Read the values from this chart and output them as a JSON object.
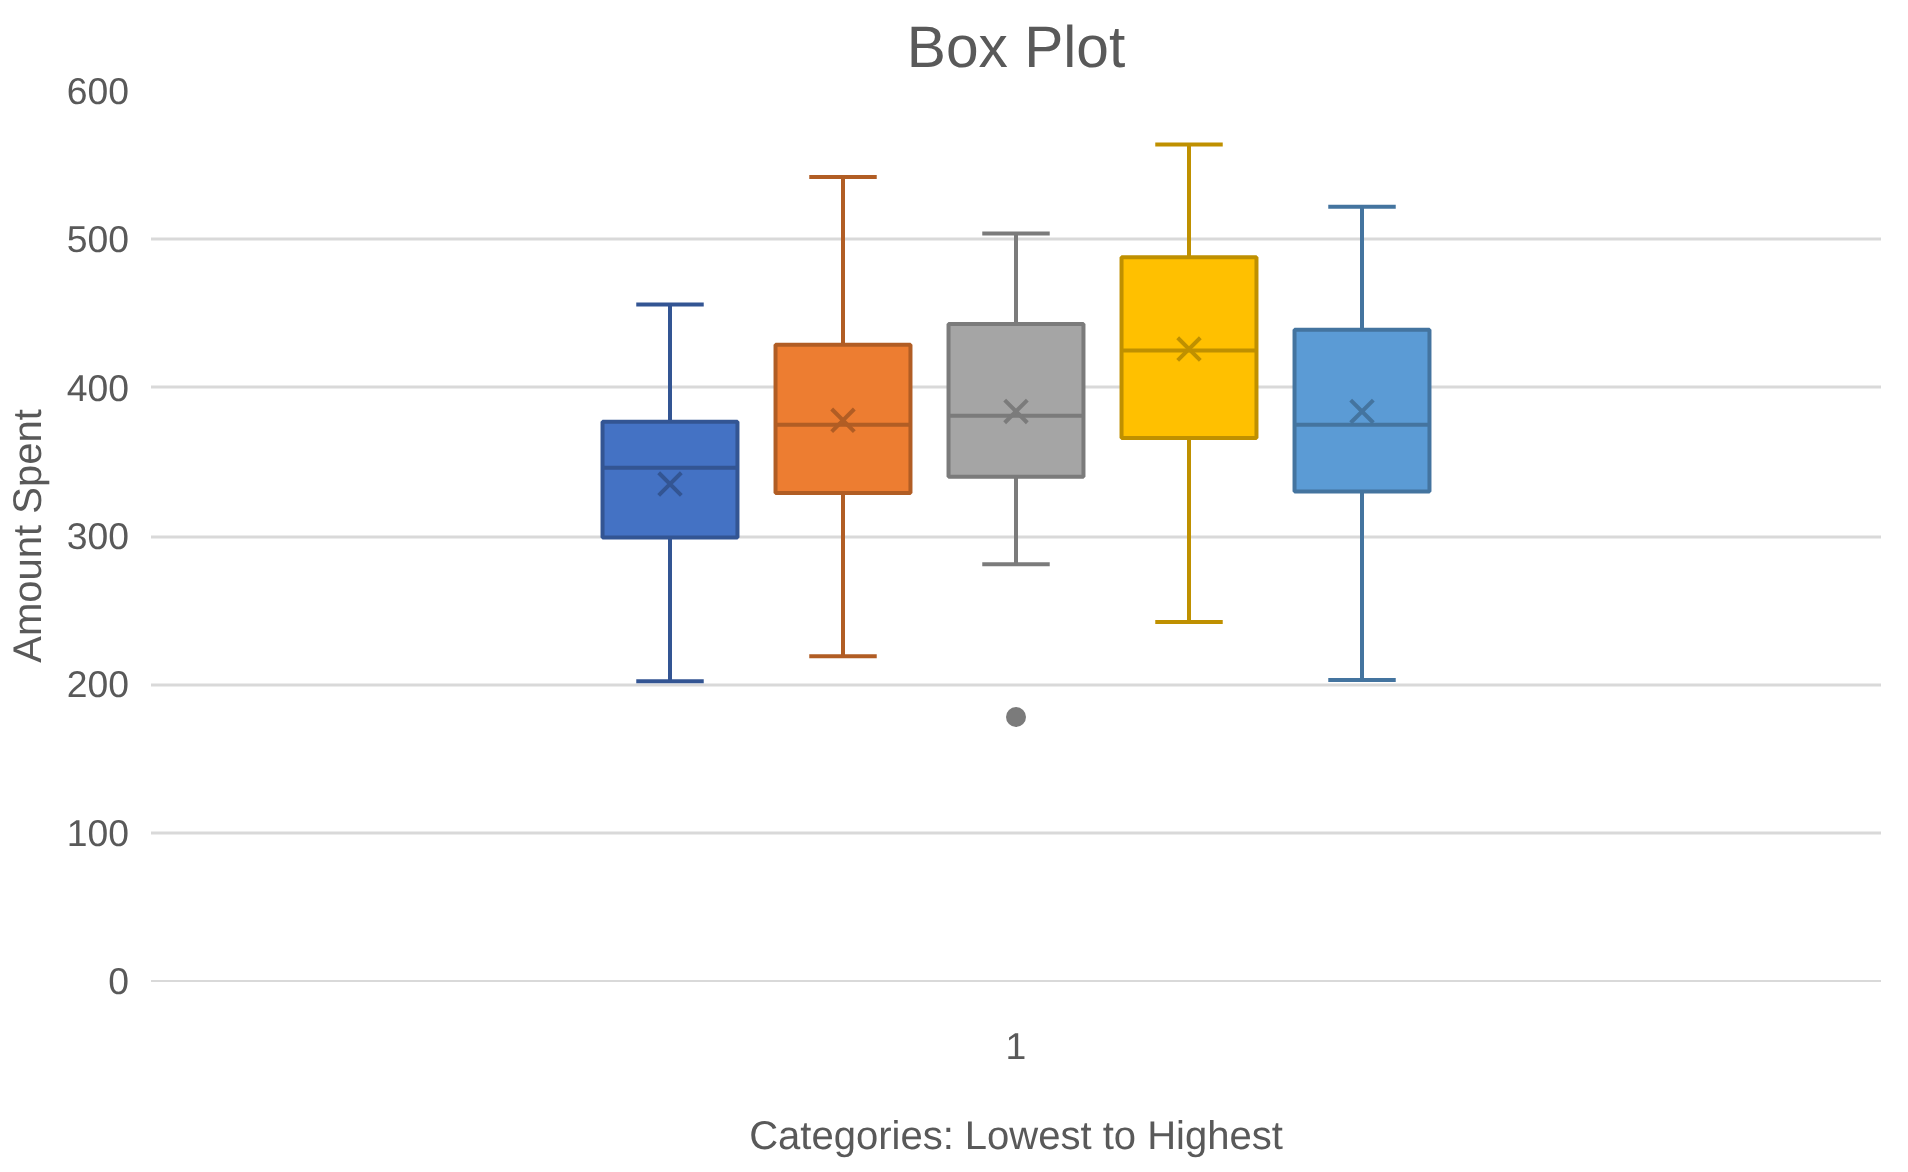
{
  "chart_data": {
    "type": "box",
    "title": "Box Plot",
    "xlabel": "Categories: Lowest to Highest",
    "ylabel": "Amount Spent",
    "categories": [
      "1"
    ],
    "ylim": [
      0,
      600
    ],
    "yticks": [
      0,
      100,
      200,
      300,
      400,
      500,
      600
    ],
    "grid": "y",
    "series": [
      {
        "color": "#4472c4",
        "boxes": [
          {
            "low": 202,
            "q1": 299,
            "median": 346,
            "q3": 377,
            "high": 456,
            "mean": 335
          }
        ]
      },
      {
        "color": "#ed7d31",
        "boxes": [
          {
            "low": 219,
            "q1": 329,
            "median": 375,
            "q3": 429,
            "high": 542,
            "mean": 378
          }
        ]
      },
      {
        "color": "#a5a5a5",
        "boxes": [
          {
            "low": 281,
            "q1": 340,
            "median": 381,
            "q3": 443,
            "high": 504,
            "mean": 384,
            "outliers": [
              178
            ]
          }
        ]
      },
      {
        "color": "#ffc000",
        "boxes": [
          {
            "low": 242,
            "q1": 366,
            "median": 425,
            "q3": 488,
            "high": 564,
            "mean": 426
          }
        ]
      },
      {
        "color": "#5b9bd5",
        "boxes": [
          {
            "low": 203,
            "q1": 330,
            "median": 375,
            "q3": 439,
            "high": 522,
            "mean": 384
          }
        ]
      }
    ]
  }
}
